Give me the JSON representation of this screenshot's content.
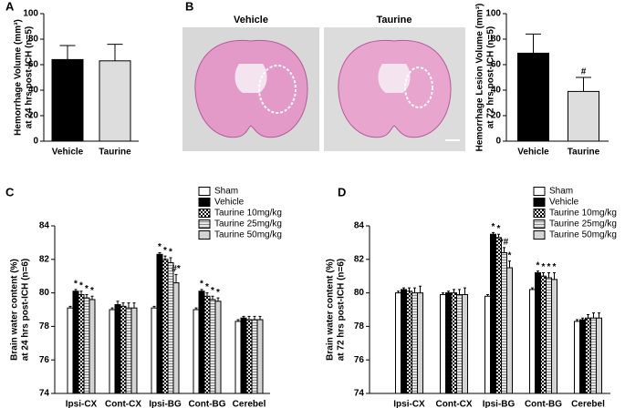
{
  "chart_data": [
    {
      "type": "bar",
      "panel": "A",
      "ylabel": [
        "Hemorrhage Volume (mm³)",
        "at 24 hrs post-ICH (n=5)"
      ],
      "categories": [
        "Vehicle",
        "Taurine"
      ],
      "values": [
        64,
        63
      ],
      "errors": [
        11,
        13
      ],
      "colors": [
        "#000000",
        "#dddddd"
      ],
      "markers": [
        null,
        null
      ],
      "ylim": [
        0,
        100
      ],
      "yticks": [
        0,
        20,
        40,
        60,
        80,
        100
      ]
    },
    {
      "type": "bar",
      "panel": "B",
      "image_labels": [
        "Vehicle",
        "Taurine"
      ],
      "ylabel": [
        "Hemorrhage Lesion Volume (mm³)",
        "at 72 hrs post-ICH (n=5)"
      ],
      "categories": [
        "Vehicle",
        "Taurine"
      ],
      "values": [
        69,
        39
      ],
      "errors": [
        15,
        11
      ],
      "colors": [
        "#000000",
        "#dddddd"
      ],
      "markers": [
        null,
        "#"
      ],
      "ylim": [
        0,
        100
      ],
      "yticks": [
        0,
        20,
        40,
        60,
        80,
        100
      ]
    },
    {
      "type": "grouped-bar",
      "panel": "C",
      "ylabel": [
        "Brain water content (%)",
        "at 24 hrs post-ICH (n=6)"
      ],
      "categories": [
        "Ipsi-CX",
        "Cont-CX",
        "Ipsi-BG",
        "Cont-BG",
        "Cerebel"
      ],
      "series": [
        {
          "name": "Sham",
          "color": "#ffffff",
          "pattern": "solid",
          "values": [
            79.1,
            79.0,
            79.1,
            79.0,
            78.3
          ],
          "errors": [
            0.1,
            0.1,
            0.1,
            0.1,
            0.1
          ],
          "markers": [
            null,
            null,
            null,
            null,
            null
          ]
        },
        {
          "name": "Vehicle",
          "color": "#000000",
          "pattern": "solid",
          "values": [
            80.1,
            79.3,
            82.3,
            80.1,
            78.5
          ],
          "errors": [
            0.1,
            0.2,
            0.1,
            0.1,
            0.1
          ],
          "markers": [
            "*",
            null,
            "*",
            "*",
            null
          ]
        },
        {
          "name": "Taurine 10mg/kg",
          "color": "#000000",
          "pattern": "checker",
          "values": [
            79.9,
            79.2,
            82.0,
            79.8,
            78.4
          ],
          "errors": [
            0.2,
            0.2,
            0.2,
            0.2,
            0.2
          ],
          "markers": [
            "*",
            null,
            "*",
            "*",
            null
          ]
        },
        {
          "name": "Taurine 25mg/kg",
          "color": "#bbbbbb",
          "pattern": "hatch",
          "values": [
            79.7,
            79.1,
            81.8,
            79.6,
            78.4
          ],
          "errors": [
            0.2,
            0.3,
            0.3,
            0.2,
            0.2
          ],
          "markers": [
            "*",
            null,
            "*",
            "*",
            null
          ]
        },
        {
          "name": "Taurine 50mg/kg",
          "color": "#d4d4d4",
          "pattern": "solid",
          "values": [
            79.6,
            79.1,
            80.6,
            79.5,
            78.4
          ],
          "errors": [
            0.2,
            0.3,
            0.5,
            0.2,
            0.2
          ],
          "markers": [
            "*",
            null,
            "#*",
            "*",
            null
          ]
        }
      ],
      "ylim": [
        74,
        84
      ],
      "yticks": [
        74,
        76,
        78,
        80,
        82,
        84
      ]
    },
    {
      "type": "grouped-bar",
      "panel": "D",
      "ylabel": [
        "Brain water content (%)",
        "at 72 hrs post-ICH (n=6)"
      ],
      "categories": [
        "Ipsi-CX",
        "Cont-CX",
        "Ipsi-BG",
        "Cont-BG",
        "Cerebel"
      ],
      "series": [
        {
          "name": "Sham",
          "color": "#ffffff",
          "pattern": "solid",
          "values": [
            80.0,
            79.9,
            79.8,
            80.2,
            78.3
          ],
          "errors": [
            0.1,
            0.1,
            0.1,
            0.1,
            0.1
          ],
          "markers": [
            null,
            null,
            null,
            null,
            null
          ]
        },
        {
          "name": "Vehicle",
          "color": "#000000",
          "pattern": "solid",
          "values": [
            80.2,
            80.0,
            83.5,
            81.2,
            78.4
          ],
          "errors": [
            0.1,
            0.1,
            0.1,
            0.1,
            0.1
          ],
          "markers": [
            null,
            null,
            "*",
            "*",
            null
          ]
        },
        {
          "name": "Taurine 10mg/kg",
          "color": "#000000",
          "pattern": "checker",
          "values": [
            80.1,
            80.0,
            83.3,
            81.0,
            78.5
          ],
          "errors": [
            0.2,
            0.2,
            0.2,
            0.2,
            0.2
          ],
          "markers": [
            null,
            null,
            "*",
            "*",
            null
          ]
        },
        {
          "name": "Taurine 25mg/kg",
          "color": "#bbbbbb",
          "pattern": "hatch",
          "values": [
            80.0,
            79.9,
            82.4,
            80.9,
            78.5
          ],
          "errors": [
            0.3,
            0.3,
            0.3,
            0.3,
            0.3
          ],
          "markers": [
            null,
            null,
            "*#",
            "*",
            null
          ]
        },
        {
          "name": "Taurine 50mg/kg",
          "color": "#d4d4d4",
          "pattern": "solid",
          "values": [
            80.0,
            79.9,
            81.5,
            80.8,
            78.5
          ],
          "errors": [
            0.4,
            0.4,
            0.4,
            0.4,
            0.3
          ],
          "markers": [
            null,
            null,
            "*",
            "*",
            null
          ]
        }
      ],
      "ylim": [
        74,
        84
      ],
      "yticks": [
        74,
        76,
        78,
        80,
        82,
        84
      ]
    }
  ]
}
